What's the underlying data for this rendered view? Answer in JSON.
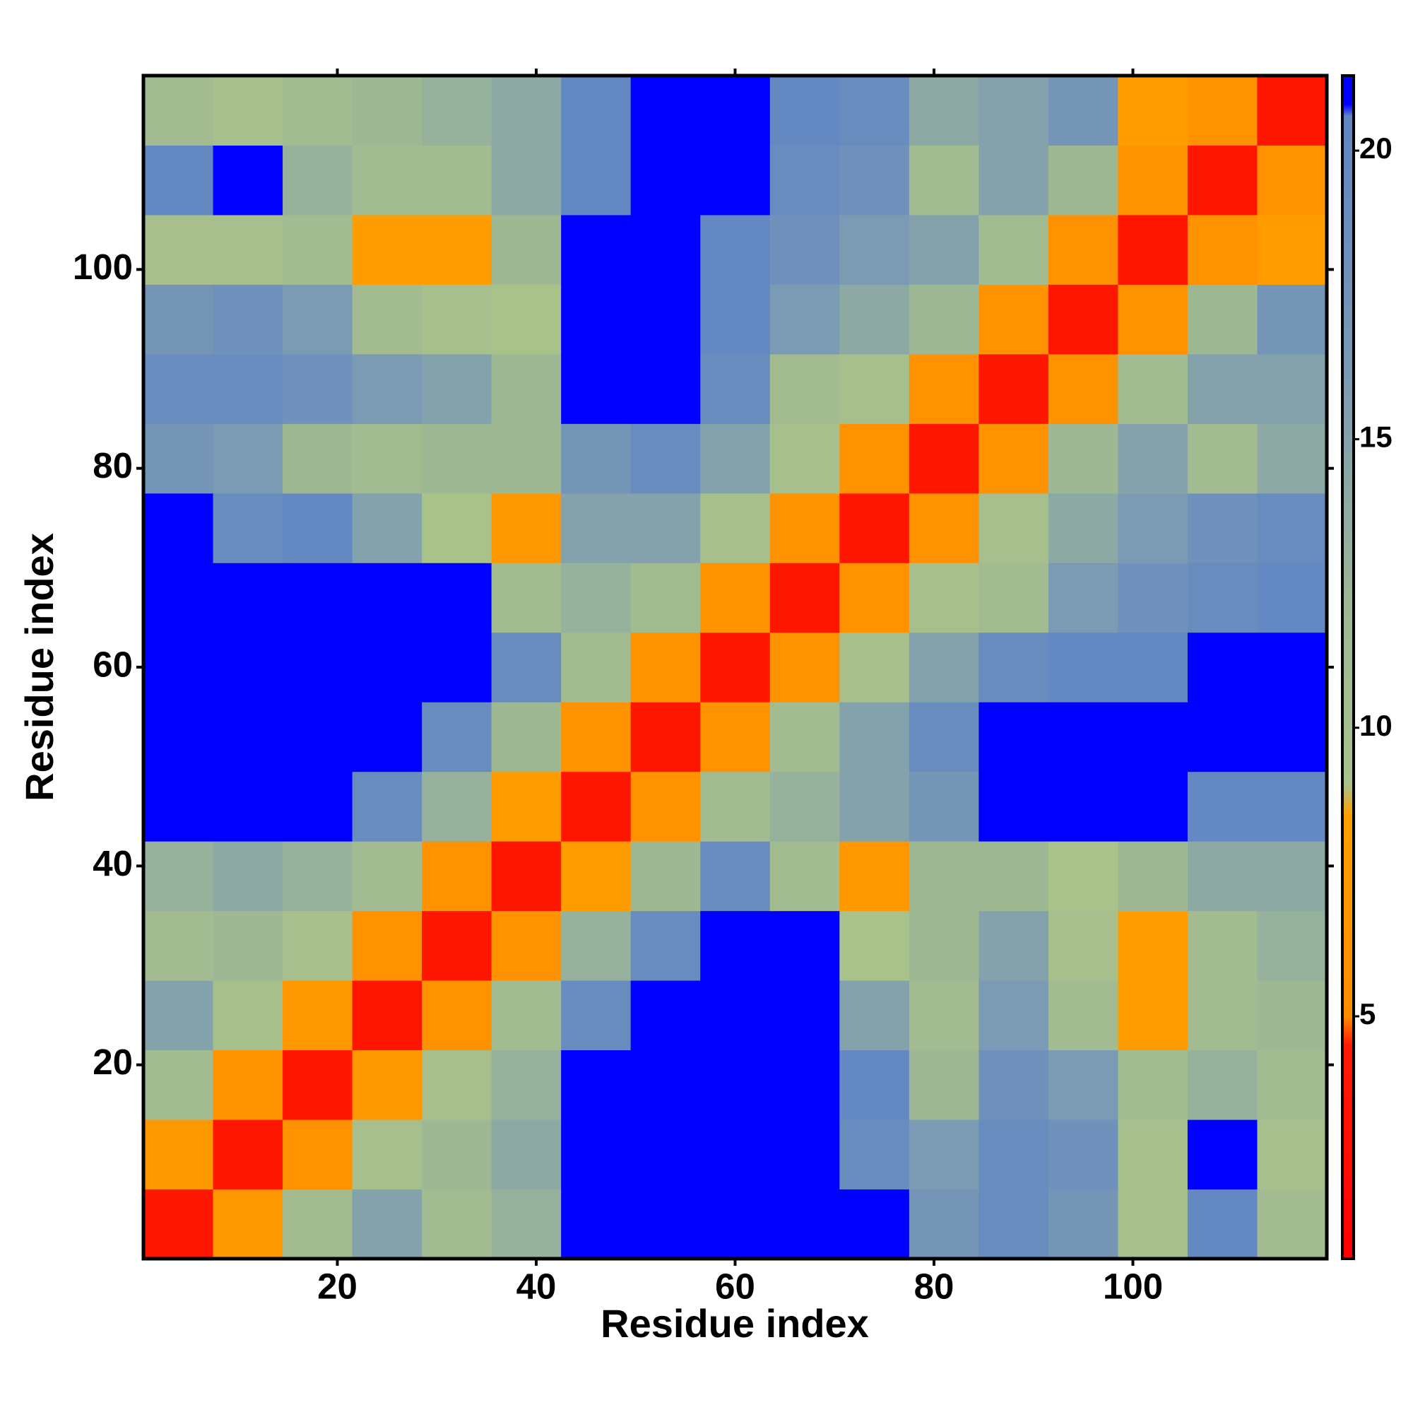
{
  "chart_data": {
    "type": "heatmap",
    "xlabel": "Residue index",
    "ylabel": "Residue index",
    "x": [
      4,
      11,
      18,
      25,
      32,
      39,
      46,
      53,
      60,
      67,
      74,
      81,
      88,
      95,
      102,
      109,
      116
    ],
    "y": [
      4,
      11,
      18,
      25,
      32,
      39,
      46,
      53,
      60,
      67,
      74,
      81,
      88,
      95,
      102,
      109,
      116
    ],
    "values": [
      [
        4,
        7,
        11,
        15,
        11,
        13,
        21,
        21,
        21,
        21,
        21,
        17,
        19,
        17,
        10,
        20,
        11
      ],
      [
        7,
        4,
        6,
        10,
        12,
        14,
        21,
        21,
        21,
        21,
        19,
        16,
        19,
        18,
        10,
        21,
        10
      ],
      [
        11,
        6,
        4,
        7,
        10,
        13,
        21,
        21,
        21,
        21,
        20,
        12,
        18,
        16,
        11,
        13,
        11
      ],
      [
        15,
        10,
        7,
        4,
        6,
        11,
        19,
        21,
        21,
        21,
        15,
        11,
        16,
        11,
        8,
        11,
        12
      ],
      [
        11,
        12,
        10,
        6,
        4,
        6,
        13,
        19,
        21,
        21,
        9,
        12,
        15,
        10,
        8,
        11,
        13
      ],
      [
        13,
        14,
        13,
        11,
        6,
        4,
        8,
        12,
        19,
        11,
        7,
        12,
        12,
        9,
        12,
        14,
        14
      ],
      [
        21,
        21,
        21,
        19,
        13,
        8,
        4,
        6,
        11,
        13,
        15,
        17,
        21,
        21,
        21,
        20,
        20
      ],
      [
        21,
        21,
        21,
        21,
        19,
        12,
        6,
        4,
        6,
        11,
        15,
        19,
        21,
        21,
        21,
        21,
        21
      ],
      [
        21,
        21,
        21,
        21,
        21,
        19,
        11,
        6,
        4,
        6,
        10,
        15,
        19,
        20,
        20,
        21,
        21
      ],
      [
        21,
        21,
        21,
        21,
        21,
        11,
        13,
        11,
        6,
        4,
        6,
        10,
        11,
        16,
        18,
        19,
        20
      ],
      [
        21,
        19,
        20,
        15,
        9,
        7,
        15,
        15,
        10,
        6,
        4,
        6,
        10,
        14,
        16,
        18,
        19
      ],
      [
        17,
        16,
        12,
        11,
        12,
        12,
        17,
        19,
        15,
        10,
        6,
        4,
        6,
        12,
        15,
        11,
        14
      ],
      [
        19,
        19,
        18,
        16,
        15,
        12,
        21,
        21,
        19,
        11,
        10,
        6,
        4,
        6,
        11,
        15,
        15
      ],
      [
        17,
        18,
        16,
        11,
        10,
        9,
        21,
        21,
        20,
        16,
        14,
        12,
        6,
        4,
        6,
        12,
        17
      ],
      [
        10,
        10,
        11,
        8,
        8,
        12,
        21,
        21,
        20,
        18,
        16,
        15,
        11,
        6,
        4,
        6,
        8
      ],
      [
        20,
        21,
        13,
        11,
        11,
        14,
        20,
        21,
        21,
        19,
        18,
        11,
        15,
        12,
        6,
        4,
        6
      ],
      [
        11,
        10,
        11,
        12,
        13,
        14,
        20,
        21,
        21,
        20,
        19,
        14,
        15,
        17,
        8,
        6,
        4
      ]
    ],
    "xlim": [
      0.5,
      119.5
    ],
    "ylim": [
      0.5,
      119.5
    ],
    "xticks": [
      20,
      40,
      60,
      80,
      100
    ],
    "yticks": [
      20,
      40,
      60,
      80,
      100
    ],
    "colorbar": {
      "lim": [
        0.8,
        21.3
      ],
      "ticks": [
        5,
        10,
        15,
        20
      ]
    },
    "colorscale": [
      [
        0.8,
        "#ff0000"
      ],
      [
        4.5,
        "#ff1a00"
      ],
      [
        5,
        "#ff8c00"
      ],
      [
        8.5,
        "#ffa000"
      ],
      [
        9,
        "#a9c28a"
      ],
      [
        12,
        "#9fb894"
      ],
      [
        16,
        "#7b9ab4"
      ],
      [
        20.6,
        "#5f85c4"
      ],
      [
        20.8,
        "#0000ff"
      ],
      [
        21.3,
        "#0000ff"
      ]
    ]
  }
}
